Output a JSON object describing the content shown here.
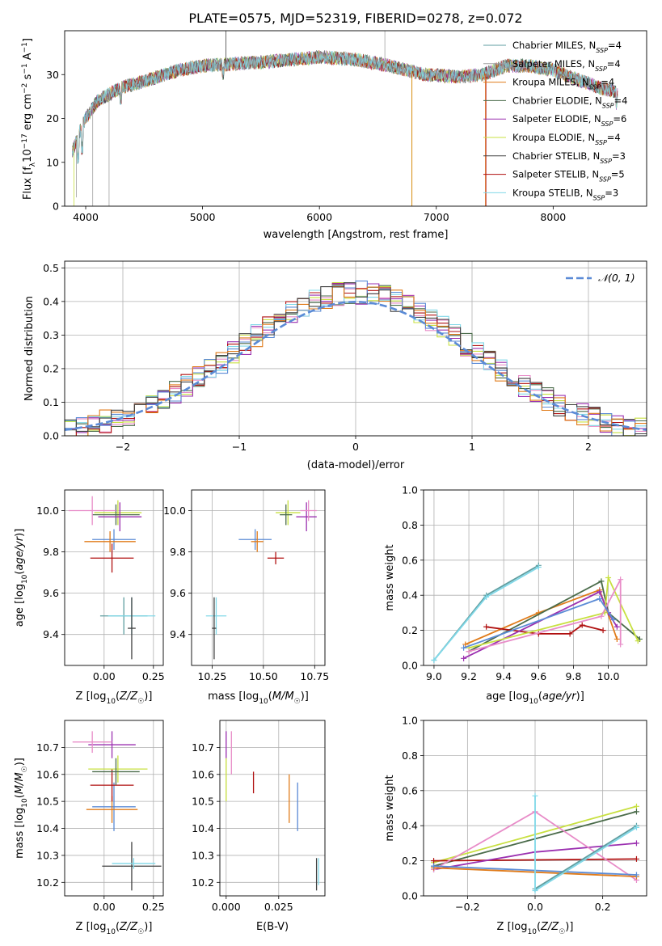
{
  "title": "PLATE=0575, MJD=52319, FIBERID=0278, z=0.072",
  "colors": [
    "#1f77b4",
    "#7f7f7f",
    "#ff7f0e",
    "#2ca02c",
    "#9467bd",
    "#bcbd22",
    "#17becf",
    "#d62728",
    "#8c564b"
  ],
  "chart_data": [
    {
      "id": "spectrum",
      "type": "line",
      "xlabel": "wavelength [Angstrom, rest frame]",
      "ylabel": "Flux [f_λ10^-17 erg cm^-2 s^-1 A^-1]",
      "xlim": [
        3820,
        8800
      ],
      "ylim": [
        0,
        40
      ],
      "xticks": [
        4000,
        5000,
        6000,
        7000,
        8000
      ],
      "yticks": [
        0,
        10,
        20,
        30
      ],
      "grid": false,
      "legend_position": "right",
      "legend": [
        {
          "label": "Chabrier MILES, N_SSP=4",
          "color": "#5f9ea0"
        },
        {
          "label": "Salpeter MILES, N_SSP=4",
          "color": "#a0a0a0"
        },
        {
          "label": "Kroupa MILES, N_SSP=4",
          "color": "#e07b1a"
        },
        {
          "label": "Chabrier ELODIE, N_SSP=4",
          "color": "#4a6b4a"
        },
        {
          "label": "Salpeter ELODIE, N_SSP=6",
          "color": "#9b30b0"
        },
        {
          "label": "Kroupa ELODIE, N_SSP=4",
          "color": "#c8e040"
        },
        {
          "label": "Chabrier STELIB, N_SSP=3",
          "color": "#404040"
        },
        {
          "label": "Salpeter STELIB, N_SSP=5",
          "color": "#b01010"
        },
        {
          "label": "Kroupa STELIB, N_SSP=3",
          "color": "#80d8e8"
        }
      ],
      "continuum": [
        [
          3880,
          12
        ],
        [
          3950,
          17
        ],
        [
          4000,
          20
        ],
        [
          4100,
          24
        ],
        [
          4300,
          27
        ],
        [
          4500,
          28.5
        ],
        [
          4800,
          31
        ],
        [
          5000,
          32
        ],
        [
          5300,
          32.5
        ],
        [
          5600,
          33
        ],
        [
          6000,
          34
        ],
        [
          6300,
          33.5
        ],
        [
          6600,
          32
        ],
        [
          6900,
          30
        ],
        [
          7200,
          29.5
        ],
        [
          7400,
          30
        ],
        [
          7600,
          32
        ],
        [
          7800,
          32
        ],
        [
          8000,
          31
        ],
        [
          8200,
          29
        ],
        [
          8400,
          27
        ],
        [
          8550,
          26
        ]
      ]
    },
    {
      "id": "residuals",
      "type": "line",
      "xlabel": "(data-model)/error",
      "ylabel": "Normed distribution",
      "xlim": [
        -2.5,
        2.5
      ],
      "ylim": [
        0,
        0.52
      ],
      "xticks": [
        -2,
        -1,
        0,
        1,
        2
      ],
      "yticks": [
        0.0,
        0.1,
        0.2,
        0.3,
        0.4,
        0.5
      ],
      "grid": true,
      "legend_position": "top-right",
      "legend_label": "𝒩(0, 1)",
      "gaussian": {
        "mu": 0,
        "sigma": 1,
        "color": "#5b8bd6"
      },
      "bin_width": 0.1
    },
    {
      "id": "age-vs-Z",
      "type": "scatter",
      "xlabel": "Z [log10(Z/Z☉)]",
      "ylabel": "age  [log10(age/yr)]",
      "xlim": [
        -0.2,
        0.3
      ],
      "ylim": [
        9.25,
        10.1
      ],
      "xticks": [
        0.0,
        0.25
      ],
      "yticks": [
        9.4,
        9.6,
        9.8,
        10.0
      ],
      "grid": true,
      "points": [
        {
          "x": 0.1,
          "y": 9.49,
          "xerr": 0.12,
          "yerr": 0.09,
          "color": "#5f9ea0"
        },
        {
          "x": 0.14,
          "y": 9.49,
          "xerr": 0.12,
          "yerr": 0.09,
          "color": "#80d8e8"
        },
        {
          "x": 0.14,
          "y": 9.43,
          "xerr": 0.02,
          "yerr": 0.15,
          "color": "#404040"
        },
        {
          "x": 0.05,
          "y": 9.86,
          "xerr": 0.11,
          "yerr": 0.05,
          "color": "#5b8bd6"
        },
        {
          "x": 0.03,
          "y": 9.85,
          "xerr": 0.13,
          "yerr": 0.05,
          "color": "#e07b1a"
        },
        {
          "x": 0.04,
          "y": 9.77,
          "xerr": 0.11,
          "yerr": 0.07,
          "color": "#b01010"
        },
        {
          "x": 0.07,
          "y": 9.99,
          "xerr": 0.12,
          "yerr": 0.06,
          "color": "#c8e040"
        },
        {
          "x": 0.06,
          "y": 9.98,
          "xerr": 0.12,
          "yerr": 0.05,
          "color": "#4a6b4a"
        },
        {
          "x": 0.08,
          "y": 9.97,
          "xerr": 0.11,
          "yerr": 0.07,
          "color": "#9b30b0"
        },
        {
          "x": -0.06,
          "y": 10.0,
          "xerr": 0.12,
          "yerr": 0.07,
          "color": "#e88cc8"
        }
      ]
    },
    {
      "id": "age-vs-mass",
      "type": "scatter",
      "xlabel": "mass [log10(M/M☉)]",
      "ylabel": "",
      "xlim": [
        10.15,
        10.8
      ],
      "ylim": [
        9.25,
        10.1
      ],
      "xticks": [
        10.25,
        10.5,
        10.75
      ],
      "yticks": [
        9.4,
        9.6,
        9.8,
        10.0
      ],
      "grid": true,
      "points": [
        {
          "x": 10.27,
          "y": 9.49,
          "xerr": 0.05,
          "yerr": 0.09,
          "color": "#80d8e8"
        },
        {
          "x": 10.26,
          "y": 9.43,
          "xerr": 0.01,
          "yerr": 0.15,
          "color": "#404040"
        },
        {
          "x": 10.46,
          "y": 9.86,
          "xerr": 0.08,
          "yerr": 0.05,
          "color": "#5b8bd6"
        },
        {
          "x": 10.47,
          "y": 9.85,
          "xerr": 0.03,
          "yerr": 0.05,
          "color": "#e07b1a"
        },
        {
          "x": 10.56,
          "y": 9.77,
          "xerr": 0.04,
          "yerr": 0.03,
          "color": "#b01010"
        },
        {
          "x": 10.62,
          "y": 9.99,
          "xerr": 0.06,
          "yerr": 0.06,
          "color": "#c8e040"
        },
        {
          "x": 10.61,
          "y": 9.98,
          "xerr": 0.03,
          "yerr": 0.05,
          "color": "#4a6b4a"
        },
        {
          "x": 10.71,
          "y": 9.97,
          "xerr": 0.05,
          "yerr": 0.07,
          "color": "#9b30b0"
        },
        {
          "x": 10.72,
          "y": 10.0,
          "xerr": 0.04,
          "yerr": 0.05,
          "color": "#e88cc8"
        }
      ]
    },
    {
      "id": "weight-vs-age",
      "type": "line",
      "xlabel": "age  [log10(age/yr)]",
      "ylabel": "mass weight",
      "xlim": [
        8.94,
        10.22
      ],
      "ylim": [
        0,
        1.0
      ],
      "xticks": [
        9.0,
        9.2,
        9.4,
        9.6,
        9.8,
        10.0
      ],
      "yticks": [
        0.0,
        0.2,
        0.4,
        0.6,
        0.8,
        1.0
      ],
      "grid": true,
      "series": [
        {
          "color": "#5f9ea0",
          "x": [
            9.0,
            9.3,
            9.6
          ],
          "y": [
            0.03,
            0.4,
            0.57
          ]
        },
        {
          "color": "#80d8e8",
          "x": [
            9.0,
            9.3,
            9.6
          ],
          "y": [
            0.03,
            0.39,
            0.56
          ]
        },
        {
          "color": "#e07b1a",
          "x": [
            9.18,
            9.6,
            9.95,
            10.05
          ],
          "y": [
            0.12,
            0.3,
            0.43,
            0.15
          ]
        },
        {
          "color": "#4a6b4a",
          "x": [
            9.2,
            9.96,
            10.0,
            10.18
          ],
          "y": [
            0.08,
            0.48,
            0.3,
            0.15
          ]
        },
        {
          "color": "#b01010",
          "x": [
            9.3,
            9.6,
            9.78,
            9.85,
            9.97
          ],
          "y": [
            0.22,
            0.18,
            0.18,
            0.23,
            0.2
          ]
        },
        {
          "color": "#9b30b0",
          "x": [
            9.17,
            9.95,
            10.0,
            10.05
          ],
          "y": [
            0.04,
            0.42,
            0.3,
            0.22
          ]
        },
        {
          "color": "#c8e040",
          "x": [
            9.2,
            9.98,
            10.0,
            10.17
          ],
          "y": [
            0.1,
            0.3,
            0.5,
            0.14
          ]
        },
        {
          "color": "#e88cc8",
          "x": [
            9.2,
            9.96,
            10.07,
            10.07
          ],
          "y": [
            0.08,
            0.28,
            0.49,
            0.12
          ]
        },
        {
          "color": "#5b8bd6",
          "x": [
            9.17,
            9.95,
            10.03
          ],
          "y": [
            0.1,
            0.38,
            0.26
          ]
        }
      ]
    },
    {
      "id": "mass-vs-Z",
      "type": "scatter",
      "xlabel": "Z [log10(Z/Z☉)]",
      "ylabel": "mass [log10(M/M☉)]",
      "xlim": [
        -0.2,
        0.3
      ],
      "ylim": [
        10.15,
        10.8
      ],
      "xticks": [
        0.0,
        0.25
      ],
      "yticks": [
        10.2,
        10.3,
        10.4,
        10.5,
        10.6,
        10.7
      ],
      "grid": true,
      "points": [
        {
          "x": 0.14,
          "y": 10.26,
          "xerr": 0.15,
          "yerr": 0.09,
          "color": "#404040"
        },
        {
          "x": 0.15,
          "y": 10.27,
          "xerr": 0.11,
          "yerr": 0.02,
          "color": "#80d8e8"
        },
        {
          "x": 0.05,
          "y": 10.48,
          "xerr": 0.11,
          "yerr": 0.09,
          "color": "#5b8bd6"
        },
        {
          "x": 0.04,
          "y": 10.47,
          "xerr": 0.13,
          "yerr": 0.05,
          "color": "#e07b1a"
        },
        {
          "x": 0.04,
          "y": 10.56,
          "xerr": 0.11,
          "yerr": 0.06,
          "color": "#b01010"
        },
        {
          "x": 0.07,
          "y": 10.62,
          "xerr": 0.15,
          "yerr": 0.05,
          "color": "#c8e040"
        },
        {
          "x": 0.06,
          "y": 10.61,
          "xerr": 0.12,
          "yerr": 0.05,
          "color": "#4a6b4a"
        },
        {
          "x": 0.04,
          "y": 10.71,
          "xerr": 0.12,
          "yerr": 0.05,
          "color": "#9b30b0"
        },
        {
          "x": -0.06,
          "y": 10.72,
          "xerr": 0.1,
          "yerr": 0.04,
          "color": "#e88cc8"
        }
      ]
    },
    {
      "id": "mass-vs-ebv",
      "type": "scatter",
      "xlabel": "E(B-V)",
      "ylabel": "",
      "xlim": [
        -0.003,
        0.047
      ],
      "ylim": [
        10.15,
        10.8
      ],
      "xticks": [
        0.0,
        0.025
      ],
      "yticks": [
        10.2,
        10.3,
        10.4,
        10.5,
        10.6,
        10.7
      ],
      "grid": true,
      "points": [
        {
          "x": 0.0,
          "y": 10.71,
          "xerr": 0,
          "yerr": 0.05,
          "color": "#9b30b0"
        },
        {
          "x": 0.0,
          "y": 10.58,
          "xerr": 0,
          "yerr": 0.08,
          "color": "#c8e040"
        },
        {
          "x": 0.0025,
          "y": 10.68,
          "xerr": 0,
          "yerr": 0.08,
          "color": "#e88cc8"
        },
        {
          "x": 0.013,
          "y": 10.57,
          "xerr": 0,
          "yerr": 0.04,
          "color": "#b01010"
        },
        {
          "x": 0.03,
          "y": 10.51,
          "xerr": 0,
          "yerr": 0.09,
          "color": "#e07b1a"
        },
        {
          "x": 0.034,
          "y": 10.48,
          "xerr": 0,
          "yerr": 0.09,
          "color": "#5b8bd6"
        },
        {
          "x": 0.043,
          "y": 10.23,
          "xerr": 0,
          "yerr": 0.06,
          "color": "#404040"
        },
        {
          "x": 0.044,
          "y": 10.24,
          "xerr": 0,
          "yerr": 0.05,
          "color": "#80d8e8"
        }
      ]
    },
    {
      "id": "weight-vs-Z",
      "type": "line",
      "xlabel": "Z [log10(Z/Z☉)]",
      "ylabel": "mass weight",
      "xlim": [
        -0.33,
        0.33
      ],
      "ylim": [
        0,
        1.0
      ],
      "xticks": [
        -0.2,
        0.0,
        0.2
      ],
      "yticks": [
        0.0,
        0.2,
        0.4,
        0.6,
        0.8,
        1.0
      ],
      "grid": true,
      "series": [
        {
          "color": "#c8e040",
          "x": [
            -0.3,
            0.3
          ],
          "y": [
            0.19,
            0.51
          ]
        },
        {
          "color": "#4a6b4a",
          "x": [
            -0.3,
            0.3
          ],
          "y": [
            0.17,
            0.48
          ]
        },
        {
          "color": "#b01010",
          "x": [
            -0.3,
            0.3
          ],
          "y": [
            0.2,
            0.21
          ]
        },
        {
          "color": "#9b30b0",
          "x": [
            -0.3,
            0.0,
            0.3
          ],
          "y": [
            0.15,
            0.25,
            0.3
          ]
        },
        {
          "color": "#e88cc8",
          "x": [
            -0.3,
            0.0,
            0.3
          ],
          "y": [
            0.15,
            0.48,
            0.09
          ]
        },
        {
          "color": "#e07b1a",
          "x": [
            -0.3,
            0.3
          ],
          "y": [
            0.16,
            0.11
          ]
        },
        {
          "color": "#5b8bd6",
          "x": [
            -0.3,
            0.3
          ],
          "y": [
            0.17,
            0.12
          ]
        },
        {
          "color": "#5f9ea0",
          "x": [
            0.0,
            0.3
          ],
          "y": [
            0.04,
            0.4
          ]
        },
        {
          "color": "#80d8e8",
          "x": [
            0.0,
            0.0,
            0.3
          ],
          "y": [
            0.57,
            0.03,
            0.39
          ]
        }
      ]
    }
  ]
}
